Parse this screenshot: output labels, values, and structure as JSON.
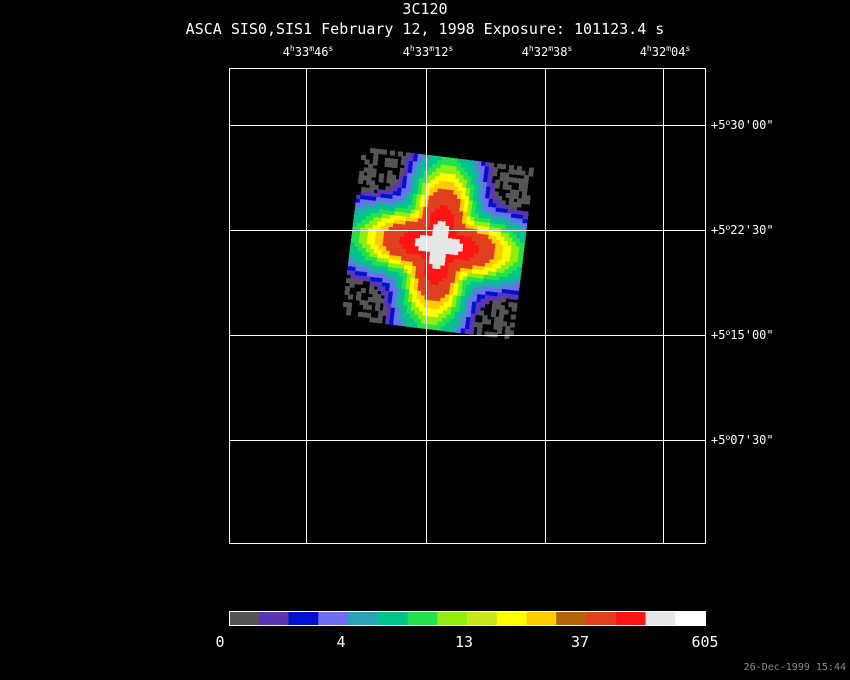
{
  "header": {
    "object": "3C120",
    "subtitle": "ASCA SIS0,SIS1 February 12, 1998 Exposure: 101123.4 s"
  },
  "chart_data": {
    "type": "heatmap",
    "title": "3C120",
    "subtitle": "ASCA SIS0,SIS1 February 12, 1998 Exposure: 101123.4 s",
    "x_axis": {
      "quantity": "Right Ascension",
      "ticks": [
        {
          "h": "4",
          "m": "33",
          "s": "46"
        },
        {
          "h": "4",
          "m": "33",
          "s": "12"
        },
        {
          "h": "4",
          "m": "32",
          "s": "38"
        },
        {
          "h": "4",
          "m": "32",
          "s": "04"
        }
      ]
    },
    "y_axis": {
      "quantity": "Declination",
      "ticks": [
        {
          "sign": "+",
          "deg": "5",
          "min": "30",
          "sec": "00"
        },
        {
          "sign": "+",
          "deg": "5",
          "min": "22",
          "sec": "30"
        },
        {
          "sign": "+",
          "deg": "5",
          "min": "15",
          "sec": "00"
        },
        {
          "sign": "+",
          "deg": "5",
          "min": "07",
          "sec": "30"
        }
      ]
    },
    "grid": true,
    "colorbar": {
      "labels": [
        "0",
        "4",
        "13",
        "37",
        "605"
      ],
      "colors": [
        "#555555",
        "#5a36b4",
        "#0010cc",
        "#6e6ef0",
        "#2aa3b4",
        "#00c58a",
        "#26e04c",
        "#90ee10",
        "#c8e61c",
        "#ffff00",
        "#ffcc00",
        "#b4640a",
        "#e0401e",
        "#ff1414",
        "#e6e6e6",
        "#ffffff"
      ]
    }
  },
  "footer": {
    "timestamp": "26-Dec-1999 15:44"
  }
}
